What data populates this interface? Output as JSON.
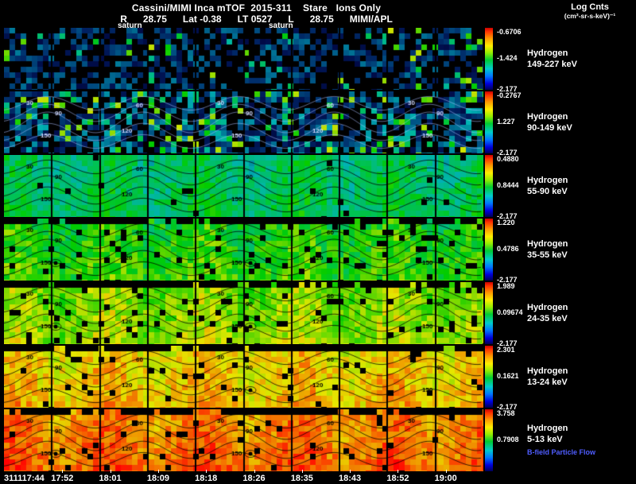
{
  "header": {
    "title": "Cassini/MIMI Inca mTOF  2015-311    Stare   Ions Only",
    "log_units_line1": "Log Cnts",
    "log_units_line2": "(cm²-sr-s-keV)⁻¹",
    "ephemeris_items": [
      "R",
      "28.75",
      "Lat -0.38",
      "LT 0527",
      "L",
      "28.75",
      "MIMI/APL"
    ],
    "saturn_label": "saturn"
  },
  "chart_data": {
    "type": "heatmap",
    "title": "Cassini/MIMI Inca mTOF 2015-311 Stare Ions Only",
    "instrument": "MIMI/APL",
    "colorbar_units": "Log Cnts (cm²-sr-s-keV)⁻¹",
    "x_tick_labels": [
      "311117:44",
      "17:52",
      "18:01",
      "18:09",
      "18:18",
      "18:26",
      "18:35",
      "18:43",
      "18:52",
      "19:00"
    ],
    "contour_levels": [
      30,
      60,
      90,
      120,
      150
    ],
    "ephemeris": {
      "R": "28.75",
      "Lat": "-0.38",
      "LT": "0527",
      "L": "28.75"
    },
    "panels": [
      {
        "species": "Hydrogen",
        "energy": "149-227 keV",
        "colorbar": {
          "top": "-0.6706",
          "mid": "-1.424",
          "bottom": "-2.177"
        }
      },
      {
        "species": "Hydrogen",
        "energy": "90-149 keV",
        "colorbar": {
          "top": "-0.2767",
          "mid": "1.227",
          "bottom": "-2.177"
        }
      },
      {
        "species": "Hydrogen",
        "energy": "55-90 keV",
        "colorbar": {
          "top": "0.4880",
          "mid": "0.8444",
          "bottom": "-2.177"
        }
      },
      {
        "species": "Hydrogen",
        "energy": "35-55 keV",
        "colorbar": {
          "top": "1.220",
          "mid": "0.4786",
          "bottom": "-2.177"
        }
      },
      {
        "species": "Hydrogen",
        "energy": "24-35 keV",
        "colorbar": {
          "top": "1.989",
          "mid": "0.09674",
          "bottom": "-2.177"
        }
      },
      {
        "species": "Hydrogen",
        "energy": "13-24 keV",
        "colorbar": {
          "top": "2.301",
          "mid": "0.1621",
          "bottom": "-2.177"
        }
      },
      {
        "species": "Hydrogen",
        "energy": "5-13 keV",
        "colorbar": {
          "top": "3.758",
          "mid": "0.7908",
          "bottom": ""
        },
        "footer": "B-field Particle Flow"
      }
    ]
  }
}
